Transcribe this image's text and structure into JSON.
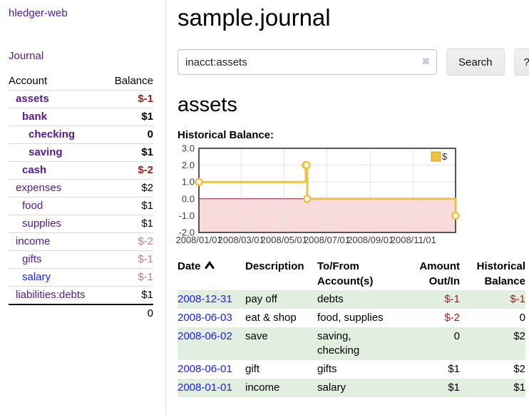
{
  "sidebar": {
    "app_title": "hledger-web",
    "journal_link": "Journal",
    "accounts_header": {
      "account": "Account",
      "balance": "Balance"
    },
    "accounts": [
      {
        "name": "assets",
        "depth": 0,
        "bold": true,
        "balance": "$-1",
        "balance_tone": "negative",
        "link_tone": "visited"
      },
      {
        "name": "bank",
        "depth": 1,
        "bold": true,
        "balance": "$1",
        "balance_tone": "normal",
        "link_tone": "visited"
      },
      {
        "name": "checking",
        "depth": 2,
        "bold": true,
        "balance": "0",
        "balance_tone": "normal",
        "link_tone": "visited"
      },
      {
        "name": "saving",
        "depth": 2,
        "bold": true,
        "balance": "$1",
        "balance_tone": "normal",
        "link_tone": "visited"
      },
      {
        "name": "cash",
        "depth": 1,
        "bold": true,
        "balance": "$-2",
        "balance_tone": "negative",
        "link_tone": "visited"
      },
      {
        "name": "expenses",
        "depth": 0,
        "bold": false,
        "balance": "$2",
        "balance_tone": "normal",
        "link_tone": "visited"
      },
      {
        "name": "food",
        "depth": 1,
        "bold": false,
        "balance": "$1",
        "balance_tone": "normal",
        "link_tone": "visited"
      },
      {
        "name": "supplies",
        "depth": 1,
        "bold": false,
        "balance": "$1",
        "balance_tone": "normal",
        "link_tone": "visited"
      },
      {
        "name": "income",
        "depth": 0,
        "bold": false,
        "balance": "$-2",
        "balance_tone": "negative-muted",
        "link_tone": "visited"
      },
      {
        "name": "gifts",
        "depth": 1,
        "bold": false,
        "balance": "$-1",
        "balance_tone": "negative-muted",
        "link_tone": "visited"
      },
      {
        "name": "salary",
        "depth": 1,
        "bold": false,
        "balance": "$-1",
        "balance_tone": "negative-muted",
        "link_tone": "unvisited"
      },
      {
        "name": "liabilities:debts",
        "depth": 0,
        "bold": false,
        "balance": "$1",
        "balance_tone": "normal",
        "link_tone": "visited"
      }
    ],
    "total": "0"
  },
  "header": {
    "title": "sample.journal"
  },
  "search": {
    "value": "inacct:assets",
    "clear_icon": "✖",
    "button_label": "Search",
    "help_label": "?"
  },
  "account_page": {
    "heading": "assets"
  },
  "chart_data": {
    "type": "line",
    "title": "Historical Balance:",
    "step": true,
    "x_range": [
      "2008-01-01",
      "2008-12-31"
    ],
    "ylim": [
      -2,
      3
    ],
    "y_ticks": [
      "3.0",
      "2.0",
      "1.0",
      "0.0",
      "-1.0",
      "-2.0"
    ],
    "x_ticks": [
      "2008/01/01",
      "2008/03/01",
      "2008/05/01",
      "2008/07/01",
      "2008/09/01",
      "2008/11/01"
    ],
    "series": [
      {
        "name": "$",
        "color": "#edc240",
        "points": [
          {
            "x": "2008-01-01",
            "y": 1
          },
          {
            "x": "2008-06-01",
            "y": 2
          },
          {
            "x": "2008-06-02",
            "y": 2
          },
          {
            "x": "2008-06-03",
            "y": 0
          },
          {
            "x": "2008-12-31",
            "y": -1
          }
        ]
      }
    ],
    "negative_region_color": "#fadbdb",
    "zero_line_color": "#8b1a1a",
    "grid_color": "#e2e2e2",
    "border_color": "#555555",
    "tick_label_color": "#3a3a3a",
    "legend": {
      "position": "top-right",
      "label": "$",
      "swatch_border": "#c9a227"
    }
  },
  "register": {
    "columns": [
      {
        "label": "Date",
        "align": "left",
        "sorted": "ascending"
      },
      {
        "label": "Description",
        "align": "left"
      },
      {
        "label": "To/From Account(s)",
        "align": "left"
      },
      {
        "label": "Amount Out/In",
        "align": "right"
      },
      {
        "label": "Historical Balance",
        "align": "right"
      }
    ],
    "rows": [
      {
        "date": "2008-12-31",
        "description": "pay off",
        "accounts": "debts",
        "amount": "$-1",
        "amount_tone": "negative",
        "balance": "$-1",
        "balance_tone": "negative"
      },
      {
        "date": "2008-06-03",
        "description": "eat & shop",
        "accounts": "food, supplies",
        "amount": "$-2",
        "amount_tone": "negative",
        "balance": "0",
        "balance_tone": "normal"
      },
      {
        "date": "2008-06-02",
        "description": "save",
        "accounts": "saving, checking",
        "amount": "0",
        "amount_tone": "normal",
        "balance": "$2",
        "balance_tone": "normal"
      },
      {
        "date": "2008-06-01",
        "description": "gift",
        "accounts": "gifts",
        "amount": "$1",
        "amount_tone": "normal",
        "balance": "$2",
        "balance_tone": "normal"
      },
      {
        "date": "2008-01-01",
        "description": "income",
        "accounts": "salary",
        "amount": "$1",
        "amount_tone": "normal",
        "balance": "$1",
        "balance_tone": "normal"
      }
    ]
  },
  "colors": {
    "link_purple": "#551a8b",
    "link_blue": "#2121ef",
    "negative": "#a11a1a",
    "negative_muted": "#c27d7d",
    "row_stripe_green": "#e1eee0",
    "chart_line": "#edc240",
    "chart_negative_fill": "#fadbdb"
  }
}
